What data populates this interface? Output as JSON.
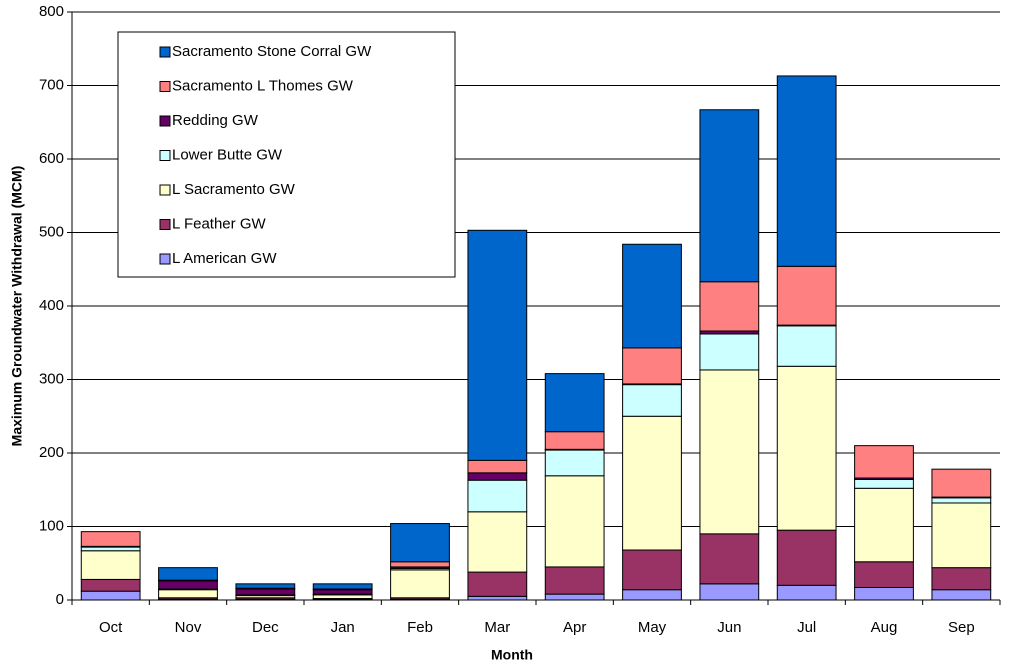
{
  "chart_data": {
    "type": "stacked_bar",
    "x_label": "Month",
    "y_label": "Maximum Groundwater Withdrawal (MCM)",
    "categories": [
      "Oct",
      "Nov",
      "Dec",
      "Jan",
      "Feb",
      "Mar",
      "Apr",
      "May",
      "Jun",
      "Jul",
      "Aug",
      "Sep"
    ],
    "series": [
      {
        "name": "L American GW",
        "color": "#9999ff",
        "values": [
          12,
          1,
          1,
          1,
          1,
          5,
          8,
          14,
          22,
          20,
          17,
          14
        ]
      },
      {
        "name": "L Feather GW",
        "color": "#993366",
        "values": [
          16,
          2,
          2,
          1,
          2,
          33,
          37,
          54,
          68,
          75,
          35,
          30
        ]
      },
      {
        "name": "L Sacramento GW",
        "color": "#ffffcc",
        "values": [
          39,
          11,
          3,
          5,
          38,
          82,
          124,
          182,
          223,
          223,
          100,
          88
        ]
      },
      {
        "name": "Lower Butte GW",
        "color": "#ccffff",
        "values": [
          5,
          1,
          1,
          1,
          2,
          43,
          35,
          43,
          49,
          55,
          12,
          7
        ]
      },
      {
        "name": "Redding GW",
        "color": "#660066",
        "values": [
          1,
          11,
          8,
          6,
          2,
          10,
          1,
          1,
          4,
          1,
          2,
          1
        ]
      },
      {
        "name": "Sacramento L Thomes GW",
        "color": "#ff8080",
        "values": [
          20,
          1,
          1,
          1,
          7,
          17,
          24,
          49,
          67,
          80,
          44,
          38
        ]
      },
      {
        "name": "Sacramento Stone Corral GW",
        "color": "#0066cc",
        "values": [
          0,
          17,
          6,
          7,
          52,
          313,
          79,
          141,
          234,
          259,
          0,
          0
        ]
      }
    ],
    "ylim": [
      0,
      800
    ],
    "yticks": [
      0,
      100,
      200,
      300,
      400,
      500,
      600,
      700,
      800
    ],
    "grid": true,
    "legend": "upper left"
  }
}
